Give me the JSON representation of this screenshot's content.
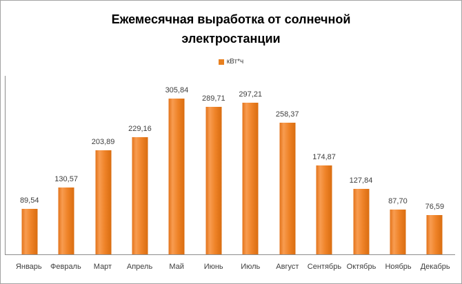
{
  "frame": {
    "background": "#ffffff",
    "border_color": "#a3a3a3"
  },
  "chart_data": {
    "type": "bar",
    "title": "Ежемесячная выработка от солнечной электростанции",
    "title_lines": [
      "Ежемесячная выработка от солнечной",
      "электростанции"
    ],
    "title_color": "#000000",
    "legend": {
      "position": "top",
      "items": [
        {
          "label": "кВт*ч",
          "swatch_color": "#e8801f"
        }
      ]
    },
    "series_name": "кВт*ч",
    "categories": [
      "Январь",
      "Февраль",
      "Март",
      "Апрель",
      "Май",
      "Июнь",
      "Июль",
      "Август",
      "Сентябрь",
      "Октябрь",
      "Ноябрь",
      "Декабрь"
    ],
    "values": [
      89.54,
      130.57,
      203.89,
      229.16,
      305.84,
      289.71,
      297.21,
      258.37,
      174.87,
      127.84,
      87.7,
      76.59
    ],
    "value_labels": [
      "89,54",
      "130,57",
      "203,89",
      "229,16",
      "305,84",
      "289,71",
      "297,21",
      "258,37",
      "174,87",
      "127,84",
      "87,70",
      "76,59"
    ],
    "xlabel": "",
    "ylabel": "",
    "ylim": [
      0,
      350
    ],
    "grid": false,
    "data_labels_shown": true,
    "y_axis_labels_shown": false,
    "bar_gradient": [
      "#e2731a",
      "#f89c50",
      "#ee8227",
      "#d96d10"
    ],
    "axis_color": "#8c8c8c",
    "text_color": "#3d3d3d"
  }
}
